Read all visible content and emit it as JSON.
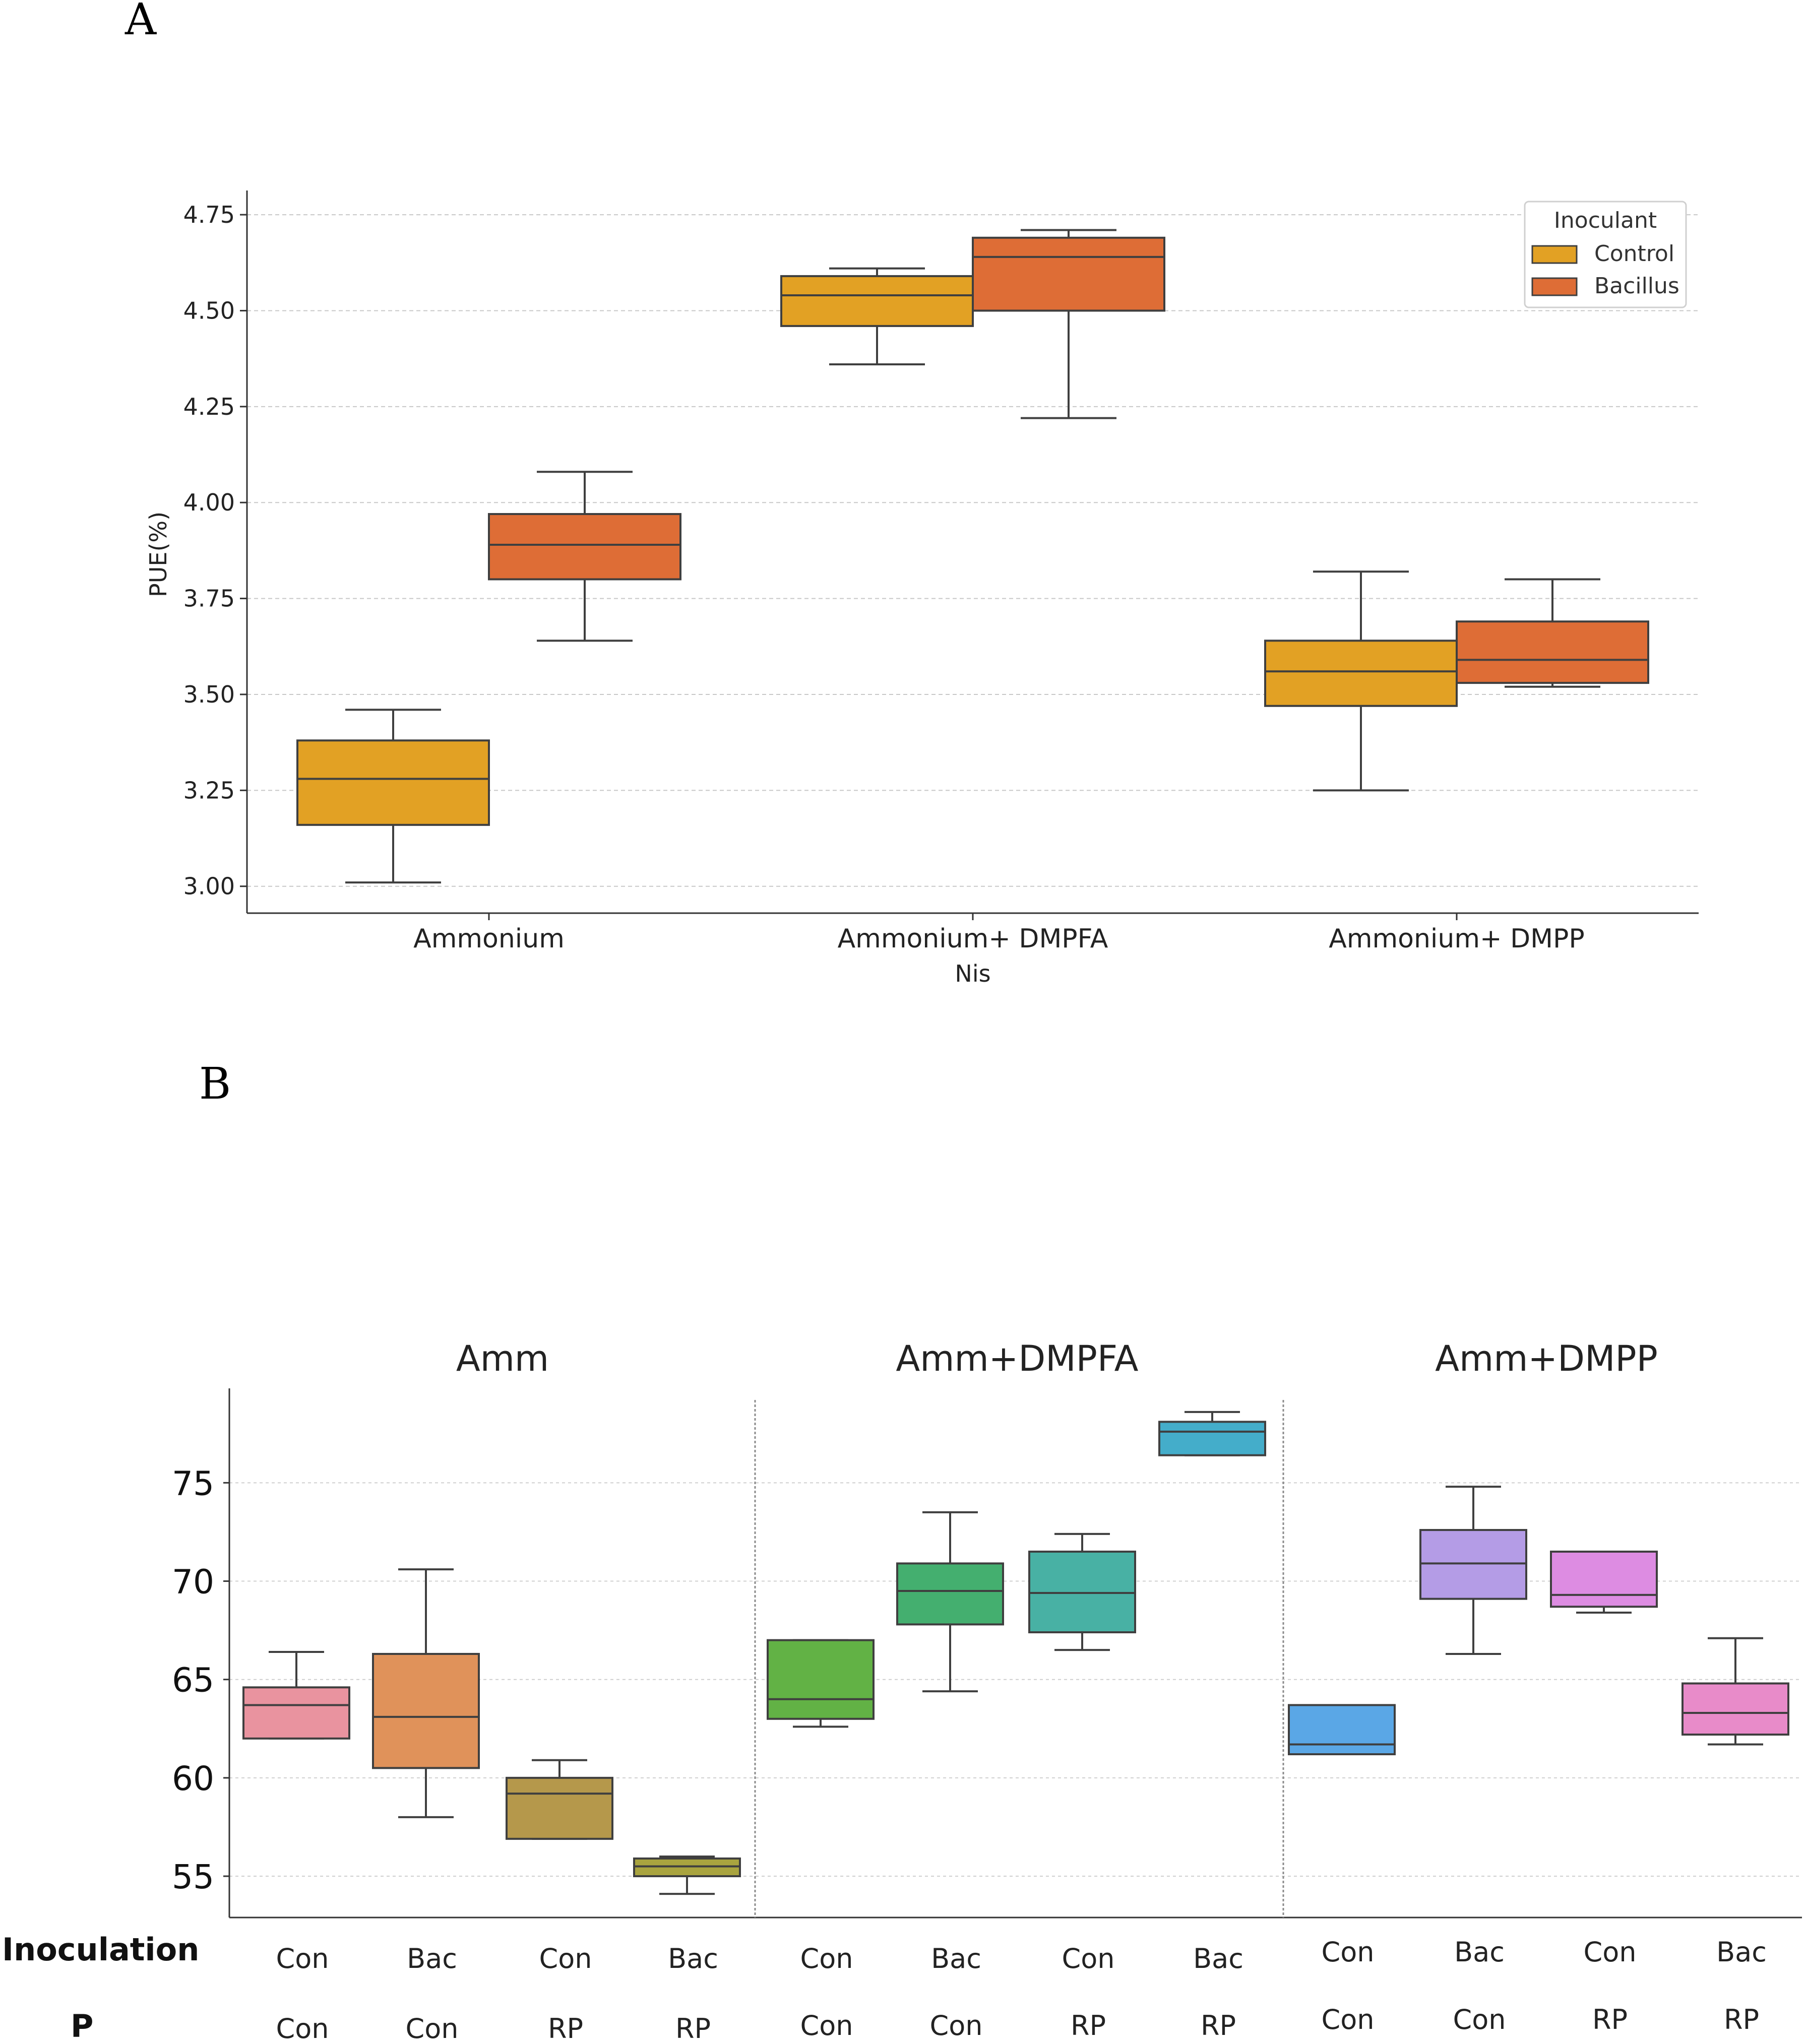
{
  "chart_data": [
    {
      "panel": "A",
      "type": "box",
      "ylabel": "PUE(%)",
      "xlabel": "Nis",
      "ylim": [
        2.93,
        4.8
      ],
      "yticks": [
        3.0,
        3.25,
        3.5,
        3.75,
        4.0,
        4.25,
        4.5,
        4.75
      ],
      "ytick_labels": [
        "3.00",
        "3.25",
        "3.50",
        "3.75",
        "4.00",
        "4.25",
        "4.50",
        "4.75"
      ],
      "grid": "horizontal dashed",
      "categories": [
        "Ammonium",
        "Ammonium+ DMPFA",
        "Ammonium+ DMPP"
      ],
      "legend": {
        "title": "Inoculant",
        "position": "top-right",
        "entries": [
          "Control",
          "Bacillus"
        ]
      },
      "series": [
        {
          "name": "Control",
          "color": "#E2A124",
          "boxes": [
            {
              "min": 3.01,
              "q1": 3.16,
              "median": 3.28,
              "q3": 3.38,
              "max": 3.46
            },
            {
              "min": 4.36,
              "q1": 4.46,
              "median": 4.54,
              "q3": 4.59,
              "max": 4.61
            },
            {
              "min": 3.25,
              "q1": 3.47,
              "median": 3.56,
              "q3": 3.64,
              "max": 3.82
            }
          ]
        },
        {
          "name": "Bacillus",
          "color": "#DE6D36",
          "boxes": [
            {
              "min": 3.64,
              "q1": 3.8,
              "median": 3.89,
              "q3": 3.97,
              "max": 4.08
            },
            {
              "min": 4.22,
              "q1": 4.5,
              "median": 4.64,
              "q3": 4.69,
              "max": 4.71
            },
            {
              "min": 3.52,
              "q1": 3.53,
              "median": 3.59,
              "q3": 3.69,
              "max": 3.8
            }
          ]
        }
      ]
    },
    {
      "panel": "B",
      "type": "box",
      "ylabel": "",
      "ylim": [
        52.9,
        79.8
      ],
      "yticks": [
        55,
        60,
        65,
        70,
        75
      ],
      "ytick_labels": [
        "55",
        "60",
        "65",
        "70",
        "75"
      ],
      "grid": "horizontal dashed",
      "groups": [
        "Amm",
        "Amm+DMPFA",
        "Amm+DMPP"
      ],
      "row_labels": [
        "Inoculation",
        "P"
      ],
      "inoculation": [
        "Con",
        "Bac",
        "Con",
        "Bac",
        "Con",
        "Bac",
        "Con",
        "Bac",
        "Con",
        "Bac",
        "Con",
        "Bac"
      ],
      "p": [
        "Con",
        "Con",
        "RP",
        "RP",
        "Con",
        "Con",
        "RP",
        "RP",
        "Con",
        "Con",
        "RP",
        "RP"
      ],
      "boxes": [
        {
          "color": "#E9939F",
          "min": 62,
          "q1": 62,
          "median": 63.7,
          "q3": 64.6,
          "max": 66.4
        },
        {
          "color": "#E0925A",
          "min": 58,
          "q1": 60.5,
          "median": 63.1,
          "q3": 66.3,
          "max": 70.6
        },
        {
          "color": "#B5984B",
          "min": 56.9,
          "q1": 56.9,
          "median": 59.2,
          "q3": 60,
          "max": 60.9
        },
        {
          "color": "#A9A43F",
          "min": 54.1,
          "q1": 55,
          "median": 55.5,
          "q3": 55.9,
          "max": 56
        },
        {
          "color": "#62B245",
          "min": 62.6,
          "q1": 63,
          "median": 64,
          "q3": 67,
          "max": 67
        },
        {
          "color": "#44AF6F",
          "min": 64.4,
          "q1": 67.8,
          "median": 69.5,
          "q3": 70.9,
          "max": 73.5
        },
        {
          "color": "#48B1A4",
          "min": 66.5,
          "q1": 67.4,
          "median": 69.4,
          "q3": 71.5,
          "max": 72.4
        },
        {
          "color": "#44ADCA",
          "min": 76.4,
          "q1": 76.4,
          "median": 77.6,
          "q3": 78.1,
          "max": 78.6
        },
        {
          "color": "#5AA7E6",
          "min": 61.2,
          "q1": 61.2,
          "median": 61.7,
          "q3": 63.7,
          "max": 63.7
        },
        {
          "color": "#B49CE6",
          "min": 66.3,
          "q1": 69.1,
          "median": 70.9,
          "q3": 72.6,
          "max": 74.8
        },
        {
          "color": "#DD8CE2",
          "min": 68.4,
          "q1": 68.7,
          "median": 69.3,
          "q3": 71.5,
          "max": 71.5
        },
        {
          "color": "#E88BC9",
          "min": 61.7,
          "q1": 62.2,
          "median": 63.3,
          "q3": 64.8,
          "max": 67.1
        }
      ]
    }
  ],
  "panel_labels": {
    "a": "A",
    "b": "B"
  }
}
